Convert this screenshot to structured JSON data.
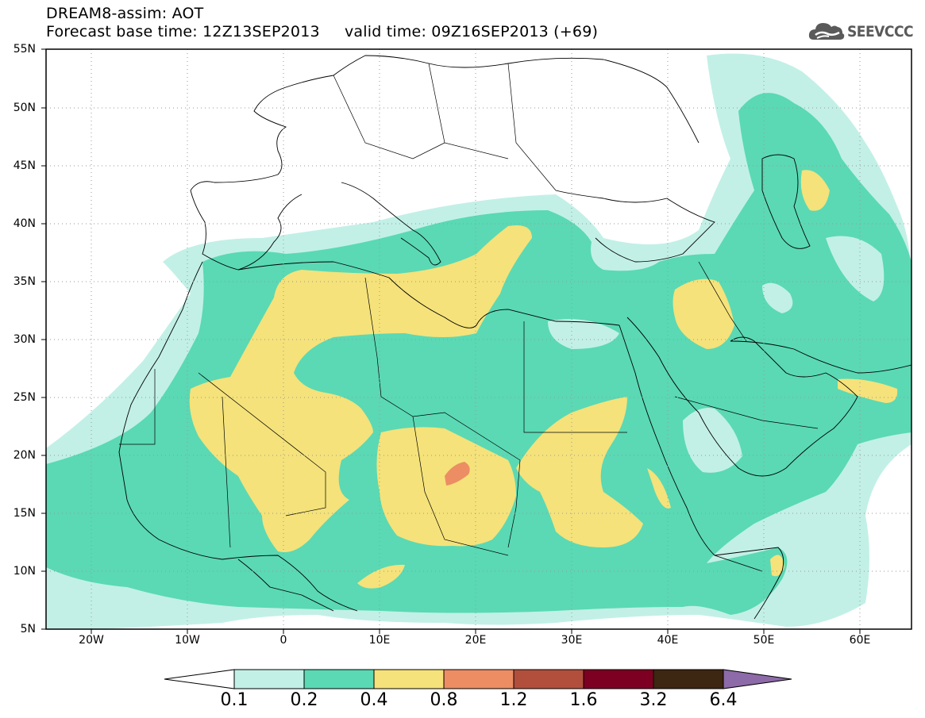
{
  "title": {
    "line1": "DREAM8-assim: AOT",
    "line2": "Forecast base time: 12Z13SEP2013     valid time: 09Z16SEP2013 (+69)"
  },
  "logo": {
    "text": "SEEVCCC",
    "icon": "cloud-icon"
  },
  "map": {
    "variable": "AOT",
    "projection": "lat-lon",
    "lon_range": [
      -25,
      65
    ],
    "lat_range": [
      5,
      55
    ],
    "grid": "dotted",
    "lat_labels": [
      "55N",
      "50N",
      "45N",
      "40N",
      "35N",
      "30N",
      "25N",
      "20N",
      "15N",
      "10N",
      "5N"
    ],
    "lon_labels": [
      "20W",
      "10W",
      "0",
      "10E",
      "20E",
      "30E",
      "40E",
      "50E",
      "60E"
    ]
  },
  "colorbar": {
    "levels": [
      "0.1",
      "0.2",
      "0.4",
      "0.8",
      "1.2",
      "1.6",
      "3.2",
      "6.4"
    ],
    "colors": {
      "under": "#ffffff",
      "c1": "#c2f0e6",
      "c2": "#5ad9b4",
      "c3": "#f5e27a",
      "c4": "#ec8d64",
      "c5": "#b24f3c",
      "c6": "#7d0022",
      "c7": "#3d2612",
      "over": "#8d6aa8"
    }
  }
}
